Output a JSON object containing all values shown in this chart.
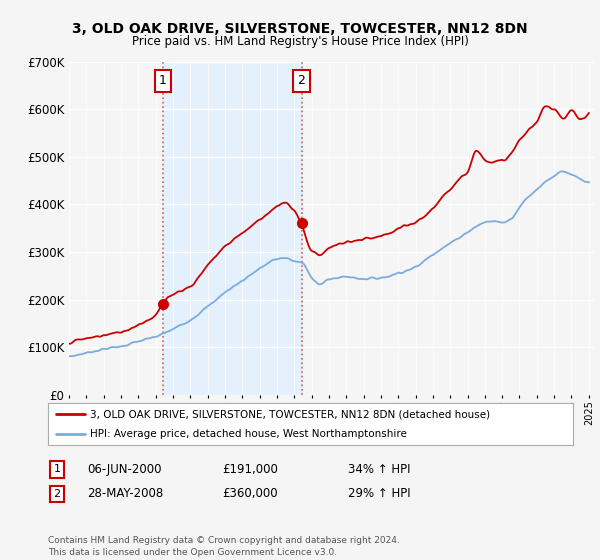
{
  "title": "3, OLD OAK DRIVE, SILVERSTONE, TOWCESTER, NN12 8DN",
  "subtitle": "Price paid vs. HM Land Registry's House Price Index (HPI)",
  "red_line_color": "#cc0000",
  "blue_line_color": "#7aace0",
  "background_color": "#f5f5f5",
  "plot_bg_color": "#f5f5f5",
  "shade_color": "#ddeeff",
  "grid_color": "#e0e0e0",
  "sale1_x": 2000.42,
  "sale1_y": 191000,
  "sale1_label": "1",
  "sale2_x": 2008.42,
  "sale2_y": 360000,
  "sale2_label": "2",
  "legend_line1": "3, OLD OAK DRIVE, SILVERSTONE, TOWCESTER, NN12 8DN (detached house)",
  "legend_line2": "HPI: Average price, detached house, West Northamptonshire",
  "footer": "Contains HM Land Registry data © Crown copyright and database right 2024.\nThis data is licensed under the Open Government Licence v3.0.",
  "xtick_years": [
    1995,
    1996,
    1997,
    1998,
    1999,
    2000,
    2001,
    2002,
    2003,
    2004,
    2005,
    2006,
    2007,
    2008,
    2009,
    2010,
    2011,
    2012,
    2013,
    2014,
    2015,
    2016,
    2017,
    2018,
    2019,
    2020,
    2021,
    2022,
    2023,
    2024,
    2025
  ],
  "ylim": [
    0,
    700000
  ],
  "xlim_start": 1995.0,
  "xlim_end": 2025.3
}
